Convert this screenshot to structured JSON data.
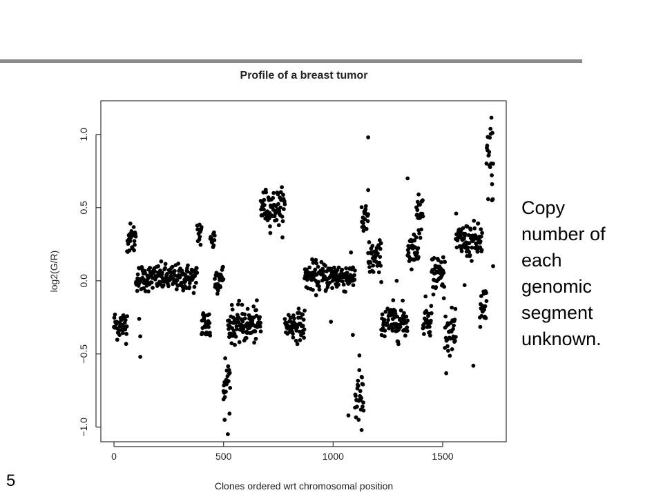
{
  "slide": {
    "number": "5",
    "side_note": "Copy\nnumber of\neach\ngenomic\nsegment\nunknown.",
    "rule_color": "#8a8a8a"
  },
  "chart_data": {
    "type": "scatter",
    "title": "Profile of a breast tumor",
    "xlabel": "Clones ordered wrt chromosomal position",
    "ylabel": "log2(G/R)",
    "xlim": [
      -60,
      1790
    ],
    "ylim": [
      -1.1,
      1.23
    ],
    "x_ticks": [
      0,
      500,
      1000,
      1500
    ],
    "x_tick_labels": [
      "0",
      "500",
      "1000",
      "1500"
    ],
    "y_ticks": [
      -1.0,
      -0.5,
      0.0,
      0.5,
      1.0
    ],
    "y_tick_labels": [
      "−1.0",
      "−0.5",
      "0.0",
      "0.5",
      "1.0"
    ],
    "grid": false,
    "point_color": "#000000",
    "segments": [
      {
        "x": [
          0,
          60
        ],
        "mean": -0.3,
        "sd": 0.05
      },
      {
        "x": [
          60,
          100
        ],
        "mean": 0.29,
        "sd": 0.05
      },
      {
        "x": [
          100,
          380
        ],
        "mean": 0.02,
        "sd": 0.045
      },
      {
        "x": [
          380,
          400
        ],
        "mean": 0.33,
        "sd": 0.05
      },
      {
        "x": [
          400,
          440
        ],
        "mean": -0.3,
        "sd": 0.06
      },
      {
        "x": [
          440,
          460
        ],
        "mean": 0.28,
        "sd": 0.05
      },
      {
        "x": [
          460,
          500
        ],
        "mean": 0.02,
        "sd": 0.05
      },
      {
        "x": [
          500,
          530
        ],
        "mean": -0.7,
        "sd": 0.1
      },
      {
        "x": [
          520,
          670
        ],
        "mean": -0.3,
        "sd": 0.06
      },
      {
        "x": [
          670,
          780
        ],
        "mean": 0.5,
        "sd": 0.06
      },
      {
        "x": [
          780,
          870
        ],
        "mean": -0.3,
        "sd": 0.05
      },
      {
        "x": [
          870,
          1100
        ],
        "mean": 0.03,
        "sd": 0.05
      },
      {
        "x": [
          1100,
          1140
        ],
        "mean": -0.8,
        "sd": 0.09
      },
      {
        "x": [
          1130,
          1160
        ],
        "mean": 0.4,
        "sd": 0.07
      },
      {
        "x": [
          1160,
          1220
        ],
        "mean": 0.15,
        "sd": 0.06
      },
      {
        "x": [
          1220,
          1340
        ],
        "mean": -0.28,
        "sd": 0.06
      },
      {
        "x": [
          1340,
          1390
        ],
        "mean": 0.22,
        "sd": 0.05
      },
      {
        "x": [
          1380,
          1410
        ],
        "mean": 0.45,
        "sd": 0.07
      },
      {
        "x": [
          1410,
          1450
        ],
        "mean": -0.25,
        "sd": 0.06
      },
      {
        "x": [
          1450,
          1510
        ],
        "mean": 0.05,
        "sd": 0.07
      },
      {
        "x": [
          1510,
          1560
        ],
        "mean": -0.35,
        "sd": 0.07
      },
      {
        "x": [
          1560,
          1680
        ],
        "mean": 0.27,
        "sd": 0.06
      },
      {
        "x": [
          1670,
          1700
        ],
        "mean": -0.22,
        "sd": 0.09
      },
      {
        "x": [
          1700,
          1730
        ],
        "mean": 0.85,
        "sd": 0.14
      }
    ],
    "outliers": [
      {
        "x": 120,
        "y": -0.52
      },
      {
        "x": 115,
        "y": -0.26
      },
      {
        "x": 120,
        "y": -0.38
      },
      {
        "x": 1160,
        "y": 0.98
      },
      {
        "x": 1160,
        "y": 0.62
      },
      {
        "x": 1340,
        "y": 0.7
      },
      {
        "x": 1390,
        "y": 0.59
      },
      {
        "x": 1070,
        "y": -0.92
      },
      {
        "x": 1120,
        "y": -0.51
      },
      {
        "x": 1640,
        "y": -0.58
      },
      {
        "x": 1730,
        "y": 0.1
      },
      {
        "x": 505,
        "y": -0.95
      },
      {
        "x": 500,
        "y": -0.81
      },
      {
        "x": 1600,
        "y": -0.03
      },
      {
        "x": 1290,
        "y": 0.0
      },
      {
        "x": 1130,
        "y": -1.02
      },
      {
        "x": 1725,
        "y": 0.55
      },
      {
        "x": 1090,
        "y": -0.37
      },
      {
        "x": 990,
        "y": -0.28
      }
    ]
  }
}
